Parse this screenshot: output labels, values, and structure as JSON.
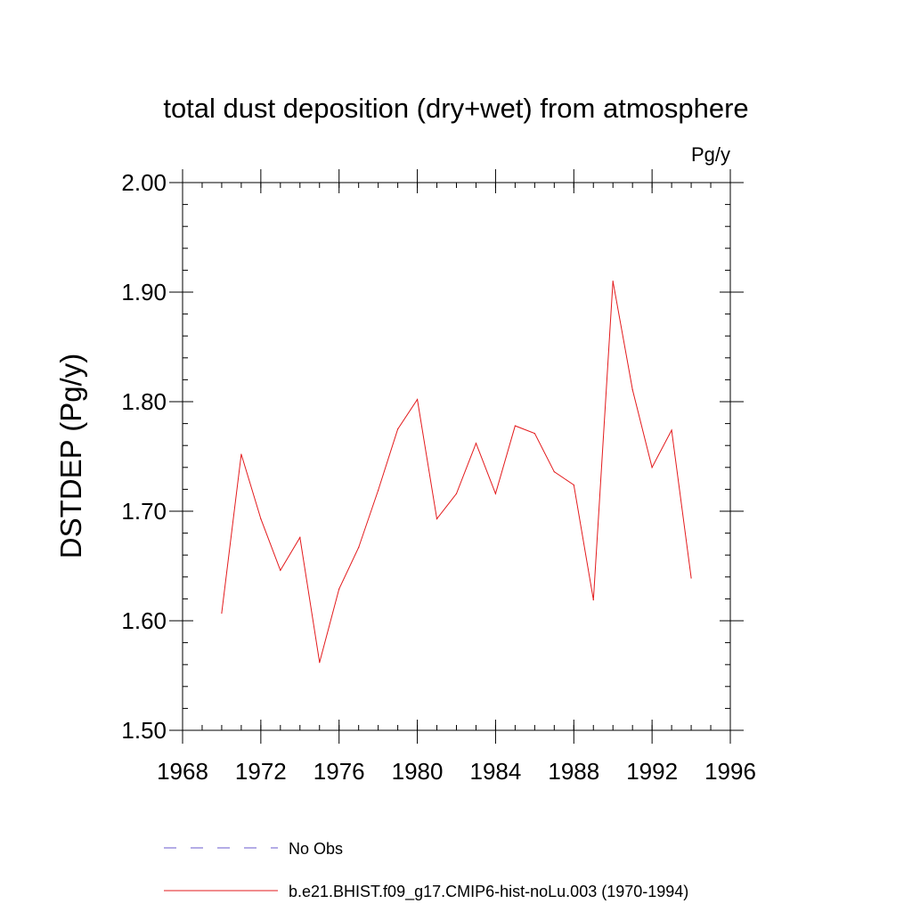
{
  "chart_data": {
    "type": "line",
    "title": "total dust deposition (dry+wet) from atmosphere",
    "units_label": "Pg/y",
    "ylabel": "DSTDEP  (Pg/y)",
    "xlabel": "",
    "xlim": [
      1968,
      1996
    ],
    "ylim": [
      1.5,
      2.0
    ],
    "x_ticks": [
      1968,
      1972,
      1976,
      1980,
      1984,
      1988,
      1992,
      1996
    ],
    "x_tick_labels": [
      "1968",
      "1972",
      "1976",
      "1980",
      "1984",
      "1988",
      "1992",
      "1996"
    ],
    "y_ticks": [
      1.5,
      1.6,
      1.7,
      1.8,
      1.9,
      2.0
    ],
    "y_tick_labels": [
      "1.50",
      "1.60",
      "1.70",
      "1.80",
      "1.90",
      "2.00"
    ],
    "grid": false,
    "legend_position": "bottom",
    "series": [
      {
        "name": "b.e21.BHIST.f09_g17.CMIP6-hist-noLu.003 (1970-1994)",
        "color": "#e31a1c",
        "style": "solid",
        "x": [
          1970,
          1971,
          1972,
          1973,
          1974,
          1975,
          1976,
          1977,
          1978,
          1979,
          1980,
          1981,
          1982,
          1983,
          1984,
          1985,
          1986,
          1987,
          1988,
          1989,
          1990,
          1991,
          1992,
          1993,
          1994
        ],
        "values": [
          1.607,
          1.752,
          1.693,
          1.646,
          1.676,
          1.562,
          1.629,
          1.667,
          1.719,
          1.775,
          1.802,
          1.693,
          1.716,
          1.762,
          1.716,
          1.778,
          1.771,
          1.736,
          1.724,
          1.619,
          1.91,
          1.811,
          1.74,
          1.774,
          1.639
        ]
      }
    ],
    "legend": [
      {
        "label": "No Obs",
        "color": "#6a5acd",
        "style": "dashed"
      },
      {
        "label": "b.e21.BHIST.f09_g17.CMIP6-hist-noLu.003 (1970-1994)",
        "color": "#e31a1c",
        "style": "solid"
      }
    ]
  }
}
